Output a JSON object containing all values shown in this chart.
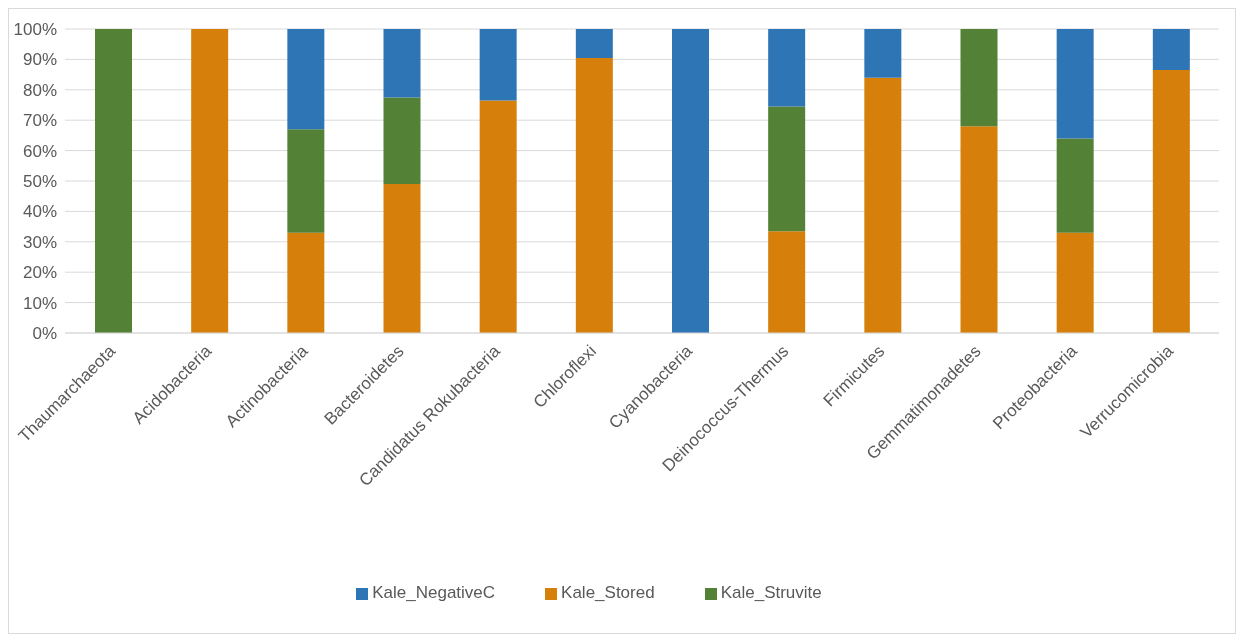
{
  "chart_data": {
    "type": "bar",
    "stacked": true,
    "categories": [
      "Thaumarchaeota",
      "Acidobacteria",
      "Actinobacteria",
      "Bacteroidetes",
      "Candidatus Rokubacteria",
      "Chloroflexi",
      "Cyanobacteria",
      "Deinococcus-Thermus",
      "Firmicutes",
      "Gemmatimonadetes",
      "Proteobacteria",
      "Verrucomicrobia"
    ],
    "series": [
      {
        "name": "Kale_Stored",
        "color": "#d77f0b",
        "values": [
          0,
          100,
          33,
          49,
          76.5,
          90.5,
          0,
          33.5,
          84,
          68,
          33,
          86.5
        ]
      },
      {
        "name": "Kale_Struvite",
        "color": "#538135",
        "values": [
          100,
          0,
          34,
          28.5,
          0,
          0,
          0,
          41,
          0,
          32,
          31,
          0
        ]
      },
      {
        "name": "Kale_NegativeC",
        "color": "#2e75b6",
        "values": [
          0,
          0,
          33,
          22.5,
          23.5,
          9.5,
          100,
          25.5,
          16,
          0,
          36,
          13.5
        ]
      }
    ],
    "ylim": [
      0,
      100
    ],
    "yticks": [
      {
        "value": 0,
        "label": "0%"
      },
      {
        "value": 10,
        "label": "10%"
      },
      {
        "value": 20,
        "label": "20%"
      },
      {
        "value": 30,
        "label": "30%"
      },
      {
        "value": 40,
        "label": "40%"
      },
      {
        "value": 50,
        "label": "50%"
      },
      {
        "value": 60,
        "label": "60%"
      },
      {
        "value": 70,
        "label": "70%"
      },
      {
        "value": 80,
        "label": "80%"
      },
      {
        "value": 90,
        "label": "90%"
      },
      {
        "value": 100,
        "label": "100%"
      }
    ],
    "grid": "y",
    "legend": "bottom"
  }
}
